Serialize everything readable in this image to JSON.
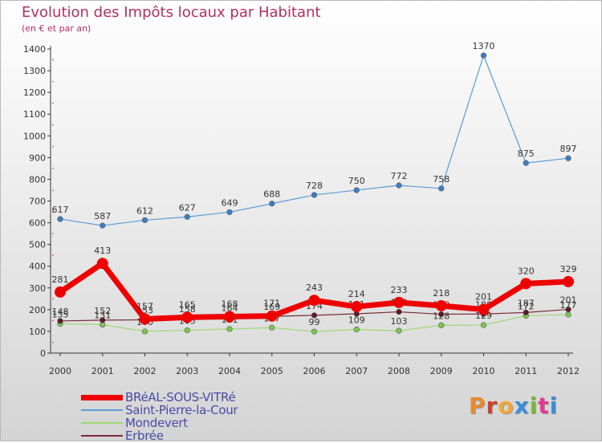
{
  "title": "Evolution des Impôts locaux par Habitant",
  "subtitle": "(en € et par an)",
  "logo": "Proxiti",
  "chart_data": {
    "type": "line",
    "x": [
      "2000",
      "2001",
      "2002",
      "2003",
      "2004",
      "2005",
      "2006",
      "2007",
      "2008",
      "2009",
      "2010",
      "2011",
      "2012"
    ],
    "ylim": [
      0,
      1400
    ],
    "yticks": [
      0,
      100,
      200,
      300,
      400,
      500,
      600,
      700,
      800,
      900,
      1000,
      1100,
      1200,
      1300,
      1400
    ],
    "grid": false,
    "legend_position": "bottom-left",
    "series": [
      {
        "name": "Saint-Pierre-la-Cour",
        "color": "#5b9bd5",
        "marker": "#3c7ec0",
        "width": 1.2,
        "values": [
          617,
          587,
          612,
          627,
          649,
          688,
          728,
          750,
          772,
          758,
          1370,
          875,
          897
        ]
      },
      {
        "name": "Mondevert",
        "color": "#9ad870",
        "marker": "#7cc850",
        "width": 1.2,
        "values": [
          135,
          131,
          100,
          105,
          111,
          117,
          99,
          109,
          103,
          128,
          129,
          172,
          177
        ]
      },
      {
        "name": "Erbrée",
        "color": "#7a2a3a",
        "marker": "#5e1a28",
        "width": 1.2,
        "values": [
          148,
          152,
          153,
          158,
          164,
          169,
          174,
          181,
          190,
          179,
          180,
          187,
          201
        ]
      },
      {
        "name": "BRéAL-SOUS-VITRé",
        "color": "#ee0000",
        "marker": "#ee0000",
        "width": 7,
        "values": [
          281,
          413,
          157,
          165,
          168,
          171,
          243,
          214,
          233,
          218,
          201,
          320,
          329
        ]
      }
    ]
  },
  "legend": [
    {
      "label": "BRéAL-SOUS-VITRé",
      "color": "#ee0000",
      "width": 7
    },
    {
      "label": "Saint-Pierre-la-Cour",
      "color": "#5b9bd5",
      "width": 2
    },
    {
      "label": "Mondevert",
      "color": "#9ad870",
      "width": 2
    },
    {
      "label": "Erbrée",
      "color": "#7a2a3a",
      "width": 2
    }
  ],
  "logo_colors": [
    "#e8892f",
    "#d0402c",
    "#f0a63a",
    "#3a8fd8",
    "#7ab83a",
    "#e03c90",
    "#3a8fd8"
  ]
}
